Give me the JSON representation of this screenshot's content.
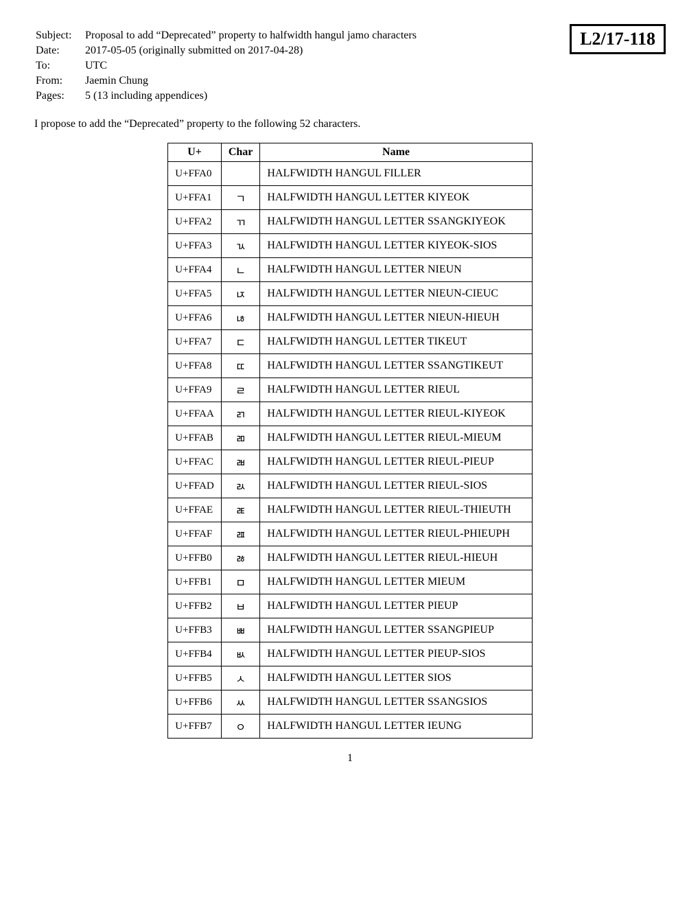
{
  "docId": "L2/17-118",
  "header": {
    "subjectLabel": "Subject:",
    "subject": "Proposal to add “Deprecated” property to halfwidth hangul jamo characters",
    "dateLabel": "Date:",
    "date": "2017-05-05 (originally submitted on 2017-04-28)",
    "toLabel": "To:",
    "to": "UTC",
    "fromLabel": "From:",
    "from": "Jaemin Chung",
    "pagesLabel": "Pages:",
    "pages": "5 (13 including appendices)"
  },
  "intro": "I propose to add the “Deprecated” property to the following 52 characters.",
  "table": {
    "headers": {
      "u": "U+",
      "char": "Char",
      "name": "Name"
    },
    "rows": [
      {
        "u": "U+FFA0",
        "char": "ﾠ",
        "name": "HALFWIDTH HANGUL FILLER"
      },
      {
        "u": "U+FFA1",
        "char": "ﾡ",
        "name": "HALFWIDTH HANGUL LETTER KIYEOK"
      },
      {
        "u": "U+FFA2",
        "char": "ﾢ",
        "name": "HALFWIDTH HANGUL LETTER SSANGKIYEOK"
      },
      {
        "u": "U+FFA3",
        "char": "ﾣ",
        "name": "HALFWIDTH HANGUL LETTER KIYEOK-SIOS"
      },
      {
        "u": "U+FFA4",
        "char": "ﾤ",
        "name": "HALFWIDTH HANGUL LETTER NIEUN"
      },
      {
        "u": "U+FFA5",
        "char": "ﾥ",
        "name": "HALFWIDTH HANGUL LETTER NIEUN-CIEUC"
      },
      {
        "u": "U+FFA6",
        "char": "ﾦ",
        "name": "HALFWIDTH HANGUL LETTER NIEUN-HIEUH"
      },
      {
        "u": "U+FFA7",
        "char": "ﾧ",
        "name": "HALFWIDTH HANGUL LETTER TIKEUT"
      },
      {
        "u": "U+FFA8",
        "char": "ﾨ",
        "name": "HALFWIDTH HANGUL LETTER SSANGTIKEUT"
      },
      {
        "u": "U+FFA9",
        "char": "ﾩ",
        "name": "HALFWIDTH HANGUL LETTER RIEUL"
      },
      {
        "u": "U+FFAA",
        "char": "ﾪ",
        "name": "HALFWIDTH HANGUL LETTER RIEUL-KIYEOK"
      },
      {
        "u": "U+FFAB",
        "char": "ﾫ",
        "name": "HALFWIDTH HANGUL LETTER RIEUL-MIEUM"
      },
      {
        "u": "U+FFAC",
        "char": "ﾬ",
        "name": "HALFWIDTH HANGUL LETTER RIEUL-PIEUP"
      },
      {
        "u": "U+FFAD",
        "char": "ﾭ",
        "name": "HALFWIDTH HANGUL LETTER RIEUL-SIOS"
      },
      {
        "u": "U+FFAE",
        "char": "ﾮ",
        "name": "HALFWIDTH HANGUL LETTER RIEUL-THIEUTH"
      },
      {
        "u": "U+FFAF",
        "char": "ﾯ",
        "name": "HALFWIDTH HANGUL LETTER RIEUL-PHIEUPH"
      },
      {
        "u": "U+FFB0",
        "char": "ﾰ",
        "name": "HALFWIDTH HANGUL LETTER RIEUL-HIEUH"
      },
      {
        "u": "U+FFB1",
        "char": "ﾱ",
        "name": "HALFWIDTH HANGUL LETTER MIEUM"
      },
      {
        "u": "U+FFB2",
        "char": "ﾲ",
        "name": "HALFWIDTH HANGUL LETTER PIEUP"
      },
      {
        "u": "U+FFB3",
        "char": "ﾳ",
        "name": "HALFWIDTH HANGUL LETTER SSANGPIEUP"
      },
      {
        "u": "U+FFB4",
        "char": "ﾴ",
        "name": "HALFWIDTH HANGUL LETTER PIEUP-SIOS"
      },
      {
        "u": "U+FFB5",
        "char": "ﾵ",
        "name": "HALFWIDTH HANGUL LETTER SIOS"
      },
      {
        "u": "U+FFB6",
        "char": "ﾶ",
        "name": "HALFWIDTH HANGUL LETTER SSANGSIOS"
      },
      {
        "u": "U+FFB7",
        "char": "ﾷ",
        "name": "HALFWIDTH HANGUL LETTER IEUNG"
      }
    ]
  },
  "pageNumber": "1"
}
